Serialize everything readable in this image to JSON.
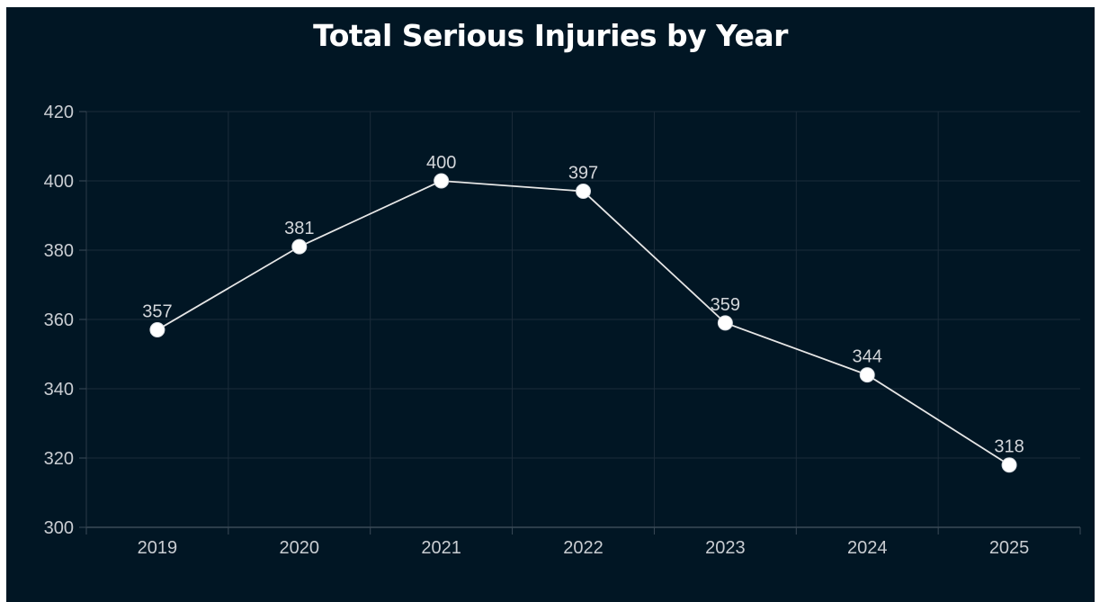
{
  "chart_data": {
    "type": "line",
    "title": "Total Serious Injuries by Year",
    "xlabel": "",
    "ylabel": "",
    "categories": [
      "2019",
      "2020",
      "2021",
      "2022",
      "2023",
      "2024",
      "2025"
    ],
    "series": [
      {
        "values": [
          357,
          381,
          400,
          397,
          359,
          344,
          318
        ]
      }
    ],
    "ylim": [
      300,
      420
    ],
    "yticks": [
      300,
      320,
      340,
      360,
      380,
      400,
      420
    ],
    "data_labels": true,
    "grid": true,
    "legend": "none",
    "colors": {
      "background": "#011624",
      "line": "#e6e6e6",
      "marker": "#ffffff",
      "grid": "#1c2c3a",
      "text": "#c9cdd2"
    }
  }
}
